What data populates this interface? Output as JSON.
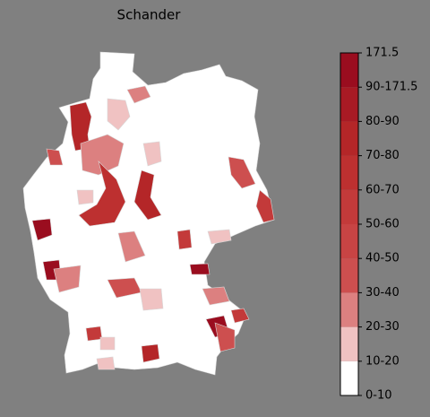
{
  "title": "Schander",
  "colorbar": {
    "labels": [
      "0-10",
      "10-20",
      "20-30",
      "30-40",
      "40-50",
      "50-60",
      "60-70",
      "70-80",
      "80-90",
      "90-171.5",
      "171.5"
    ],
    "colors": [
      "#ffffff",
      "#f0c2c2",
      "#dc8080",
      "#cd4f4f",
      "#c84444",
      "#c33a3a",
      "#bd3030",
      "#b42628",
      "#a81a24",
      "#9a0d1f"
    ]
  }
}
